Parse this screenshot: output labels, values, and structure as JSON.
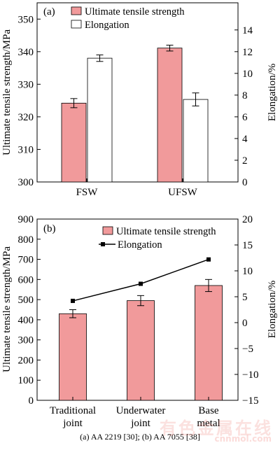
{
  "colors": {
    "strength_fill": "#f19a9b",
    "elong_fill": "#ffffff",
    "stroke": "#000000"
  },
  "chart_data": [
    {
      "type": "bar",
      "panel_label": "(a)",
      "categories": [
        "FSW",
        "UFSW"
      ],
      "ylabel": "Ultimate tensile strength/MPa",
      "y2label": "Elongation/%",
      "ylim": [
        300,
        355
      ],
      "y2lim": [
        0,
        16.5
      ],
      "yticks": [
        "300",
        "310",
        "320",
        "330",
        "340",
        "350"
      ],
      "y2ticks": [
        "0",
        "2",
        "4",
        "6",
        "8",
        "10",
        "12",
        "14"
      ],
      "legend": [
        "Ultimate tensile strength",
        "Elongation"
      ],
      "legend_position": "top-left",
      "series": [
        {
          "name": "Ultimate tensile strength",
          "axis": "left",
          "values": [
            324.2,
            341.1
          ],
          "errors": [
            1.4,
            0.9
          ]
        },
        {
          "name": "Elongation",
          "axis": "right",
          "values": [
            11.4,
            7.6
          ],
          "errors": [
            0.3,
            0.6
          ]
        }
      ]
    },
    {
      "type": "bar+line",
      "panel_label": "(b)",
      "categories": [
        "Traditional\njoint",
        "Underwater\njoint",
        "Base\nmetal"
      ],
      "ylabel": "Ultimate tensile strength/MPa",
      "y2label": "Elongation/%",
      "ylim": [
        0,
        900
      ],
      "y2lim": [
        -15,
        20
      ],
      "yticks": [
        "0",
        "100",
        "200",
        "300",
        "400",
        "500",
        "600",
        "700",
        "800",
        "900"
      ],
      "y2ticks": [
        "−15",
        "−10",
        "−5",
        "0",
        "5",
        "10",
        "15",
        "20"
      ],
      "legend": [
        "Ultimate tensile strength",
        "Elongation"
      ],
      "legend_position": "top-center",
      "series": [
        {
          "name": "Ultimate tensile strength",
          "type": "bar",
          "axis": "left",
          "values": [
            430,
            495,
            570
          ],
          "errors": [
            20,
            25,
            30
          ]
        },
        {
          "name": "Elongation",
          "type": "line",
          "axis": "right",
          "values": [
            4.2,
            7.5,
            12.2
          ]
        }
      ]
    }
  ],
  "caption": "(a) AA 2219 [30]; (b) AA 7055 [38]",
  "watermark": "有色金属在线",
  "watermark_url": "cnnmol.com"
}
